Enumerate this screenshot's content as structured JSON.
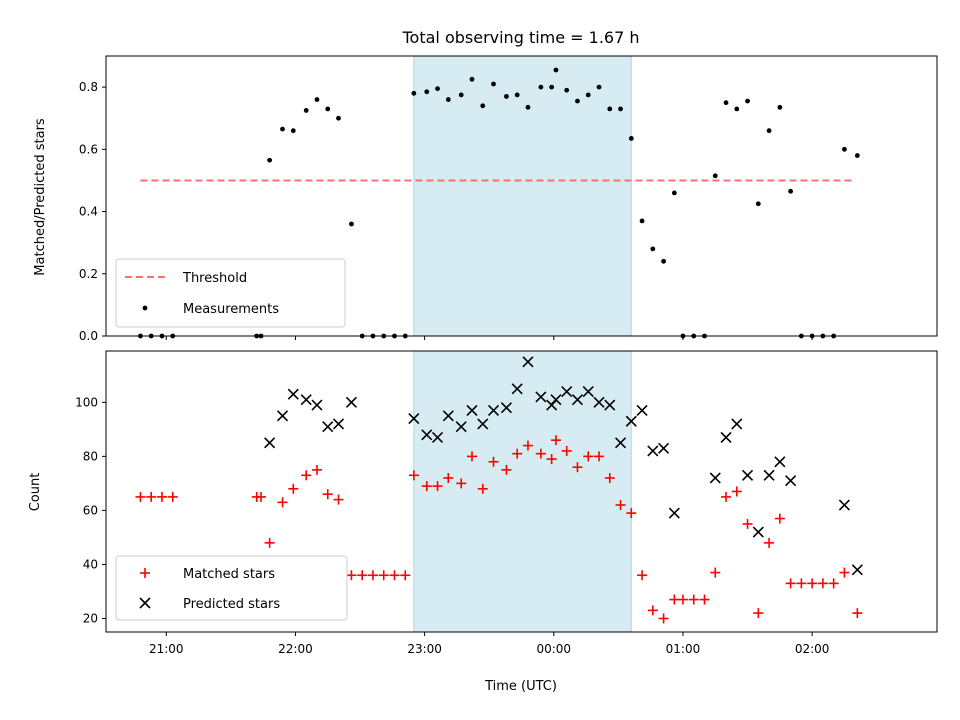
{
  "chart_data": [
    {
      "type": "scatter",
      "title": "Total observing time = 1.67 h",
      "ylabel": "Matched/Predicted stars",
      "xlabel": "",
      "xlim": [
        "20:32",
        "02:58"
      ],
      "ylim": [
        0,
        0.9
      ],
      "yticks": [
        0.0,
        0.2,
        0.4,
        0.6,
        0.8
      ],
      "ytick_labels": [
        "0.0",
        "0.2",
        "0.4",
        "0.6",
        "0.8"
      ],
      "xticks": [
        "21:00",
        "22:00",
        "23:00",
        "00:00",
        "01:00",
        "02:00"
      ],
      "show_xtick_labels": false,
      "grid": false,
      "legend_position": "lower-left",
      "highlight_span": {
        "x0": "22:55",
        "x1": "00:36",
        "color": "#add8e6"
      },
      "threshold": {
        "name": "Threshold",
        "x0": "20:48",
        "x1": "02:20",
        "y": 0.5,
        "color": "#ff6f6f"
      },
      "series": [
        {
          "name": "Measurements",
          "color": "#000000",
          "points": [
            [
              "20:48",
              0
            ],
            [
              "20:53",
              0
            ],
            [
              "20:58",
              0
            ],
            [
              "21:03",
              0
            ],
            [
              "21:42",
              0
            ],
            [
              "21:44",
              0
            ],
            [
              "21:48",
              0.565
            ],
            [
              "21:54",
              0.665
            ],
            [
              "21:59",
              0.66
            ],
            [
              "22:05",
              0.725
            ],
            [
              "22:10",
              0.76
            ],
            [
              "22:15",
              0.73
            ],
            [
              "22:20",
              0.7
            ],
            [
              "22:26",
              0.36
            ],
            [
              "22:31",
              0
            ],
            [
              "22:36",
              0
            ],
            [
              "22:41",
              0
            ],
            [
              "22:46",
              0
            ],
            [
              "22:51",
              0
            ],
            [
              "22:55",
              0.78
            ],
            [
              "23:01",
              0.785
            ],
            [
              "23:06",
              0.795
            ],
            [
              "23:11",
              0.76
            ],
            [
              "23:17",
              0.775
            ],
            [
              "23:22",
              0.825
            ],
            [
              "23:27",
              0.74
            ],
            [
              "23:32",
              0.81
            ],
            [
              "23:38",
              0.77
            ],
            [
              "23:43",
              0.775
            ],
            [
              "23:48",
              0.735
            ],
            [
              "23:54",
              0.8
            ],
            [
              "23:59",
              0.8
            ],
            [
              "00:01",
              0.855
            ],
            [
              "00:06",
              0.79
            ],
            [
              "00:11",
              0.755
            ],
            [
              "00:16",
              0.775
            ],
            [
              "00:21",
              0.8
            ],
            [
              "00:26",
              0.73
            ],
            [
              "00:31",
              0.73
            ],
            [
              "00:36",
              0.635
            ],
            [
              "00:41",
              0.37
            ],
            [
              "00:46",
              0.28
            ],
            [
              "00:51",
              0.24
            ],
            [
              "00:56",
              0.46
            ],
            [
              "01:00",
              0
            ],
            [
              "01:05",
              0
            ],
            [
              "01:10",
              0
            ],
            [
              "01:15",
              0.515
            ],
            [
              "01:20",
              0.75
            ],
            [
              "01:25",
              0.73
            ],
            [
              "01:30",
              0.755
            ],
            [
              "01:35",
              0.425
            ],
            [
              "01:40",
              0.66
            ],
            [
              "01:45",
              0.735
            ],
            [
              "01:50",
              0.465
            ],
            [
              "01:55",
              0
            ],
            [
              "02:00",
              0
            ],
            [
              "02:05",
              0
            ],
            [
              "02:10",
              0
            ],
            [
              "02:15",
              0.6
            ],
            [
              "02:21",
              0.58
            ]
          ]
        }
      ]
    },
    {
      "type": "scatter",
      "title": "",
      "ylabel": "Count",
      "xlabel": "Time (UTC)",
      "xlim": [
        "20:32",
        "02:58"
      ],
      "ylim": [
        15,
        119
      ],
      "yticks": [
        20,
        40,
        60,
        80,
        100
      ],
      "ytick_labels": [
        "20",
        "40",
        "60",
        "80",
        "100"
      ],
      "xticks": [
        "21:00",
        "22:00",
        "23:00",
        "00:00",
        "01:00",
        "02:00"
      ],
      "xtick_labels": [
        "21:00",
        "22:00",
        "23:00",
        "00:00",
        "01:00",
        "02:00"
      ],
      "grid": false,
      "legend_position": "lower-left",
      "highlight_span": {
        "x0": "22:55",
        "x1": "00:36",
        "color": "#add8e6"
      },
      "series": [
        {
          "name": "Matched stars",
          "marker": "plus",
          "color": "#ff0000",
          "points": [
            [
              "20:48",
              65
            ],
            [
              "20:53",
              65
            ],
            [
              "20:58",
              65
            ],
            [
              "21:03",
              65
            ],
            [
              "21:42",
              65
            ],
            [
              "21:44",
              65
            ],
            [
              "21:48",
              48
            ],
            [
              "21:54",
              63
            ],
            [
              "21:59",
              68
            ],
            [
              "22:05",
              73
            ],
            [
              "22:10",
              75
            ],
            [
              "22:15",
              66
            ],
            [
              "22:20",
              64
            ],
            [
              "22:26",
              36
            ],
            [
              "22:31",
              36
            ],
            [
              "22:36",
              36
            ],
            [
              "22:41",
              36
            ],
            [
              "22:46",
              36
            ],
            [
              "22:51",
              36
            ],
            [
              "22:55",
              73
            ],
            [
              "23:01",
              69
            ],
            [
              "23:06",
              69
            ],
            [
              "23:11",
              72
            ],
            [
              "23:17",
              70
            ],
            [
              "23:22",
              80
            ],
            [
              "23:27",
              68
            ],
            [
              "23:32",
              78
            ],
            [
              "23:38",
              75
            ],
            [
              "23:43",
              81
            ],
            [
              "23:48",
              84
            ],
            [
              "23:54",
              81
            ],
            [
              "23:59",
              79
            ],
            [
              "00:01",
              86
            ],
            [
              "00:06",
              82
            ],
            [
              "00:11",
              76
            ],
            [
              "00:16",
              80
            ],
            [
              "00:21",
              80
            ],
            [
              "00:26",
              72
            ],
            [
              "00:31",
              62
            ],
            [
              "00:36",
              59
            ],
            [
              "00:41",
              36
            ],
            [
              "00:46",
              23
            ],
            [
              "00:51",
              20
            ],
            [
              "00:56",
              27
            ],
            [
              "01:00",
              27
            ],
            [
              "01:05",
              27
            ],
            [
              "01:10",
              27
            ],
            [
              "01:15",
              37
            ],
            [
              "01:20",
              65
            ],
            [
              "01:25",
              67
            ],
            [
              "01:30",
              55
            ],
            [
              "01:35",
              22
            ],
            [
              "01:40",
              48
            ],
            [
              "01:45",
              57
            ],
            [
              "01:50",
              33
            ],
            [
              "01:55",
              33
            ],
            [
              "02:00",
              33
            ],
            [
              "02:05",
              33
            ],
            [
              "02:10",
              33
            ],
            [
              "02:15",
              37
            ],
            [
              "02:21",
              22
            ]
          ]
        },
        {
          "name": "Predicted stars",
          "marker": "x",
          "color": "#000000",
          "points": [
            [
              "21:48",
              85
            ],
            [
              "21:54",
              95
            ],
            [
              "21:59",
              103
            ],
            [
              "22:05",
              101
            ],
            [
              "22:10",
              99
            ],
            [
              "22:15",
              91
            ],
            [
              "22:20",
              92
            ],
            [
              "22:26",
              100
            ],
            [
              "22:55",
              94
            ],
            [
              "23:01",
              88
            ],
            [
              "23:06",
              87
            ],
            [
              "23:11",
              95
            ],
            [
              "23:17",
              91
            ],
            [
              "23:22",
              97
            ],
            [
              "23:27",
              92
            ],
            [
              "23:32",
              97
            ],
            [
              "23:38",
              98
            ],
            [
              "23:43",
              105
            ],
            [
              "23:48",
              115
            ],
            [
              "23:54",
              102
            ],
            [
              "23:59",
              99
            ],
            [
              "00:01",
              101
            ],
            [
              "00:06",
              104
            ],
            [
              "00:11",
              101
            ],
            [
              "00:16",
              104
            ],
            [
              "00:21",
              100
            ],
            [
              "00:26",
              99
            ],
            [
              "00:31",
              85
            ],
            [
              "00:36",
              93
            ],
            [
              "00:41",
              97
            ],
            [
              "00:46",
              82
            ],
            [
              "00:51",
              83
            ],
            [
              "00:56",
              59
            ],
            [
              "01:15",
              72
            ],
            [
              "01:20",
              87
            ],
            [
              "01:25",
              92
            ],
            [
              "01:30",
              73
            ],
            [
              "01:35",
              52
            ],
            [
              "01:40",
              73
            ],
            [
              "01:45",
              78
            ],
            [
              "01:50",
              71
            ],
            [
              "02:15",
              62
            ],
            [
              "02:21",
              38
            ]
          ]
        }
      ]
    }
  ]
}
